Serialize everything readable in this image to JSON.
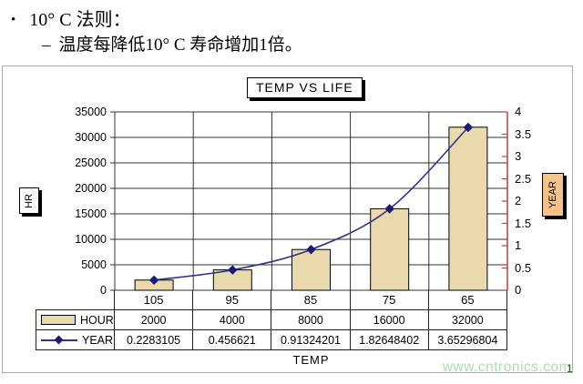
{
  "slide": {
    "bullet1": {
      "marker": "•",
      "text": "10° C 法则："
    },
    "bullet2": {
      "marker": "–",
      "text": "温度每降低10° C 寿命增加1倍。"
    },
    "page_number": "1"
  },
  "watermark": "www.cntronics.com",
  "chart_data": {
    "type": "bar+line combo",
    "title": "TEMP VS LIFE",
    "xlabel": "TEMP",
    "categories": [
      "105",
      "95",
      "85",
      "75",
      "65"
    ],
    "series": [
      {
        "name": "HOUR",
        "type": "bar",
        "axis": "left",
        "values": [
          2000,
          4000,
          8000,
          16000,
          32000
        ],
        "display": [
          "2000",
          "4000",
          "8000",
          "16000",
          "32000"
        ]
      },
      {
        "name": "YEAR",
        "type": "line",
        "axis": "right",
        "values": [
          0.2283105,
          0.456621,
          0.91324201,
          1.82648402,
          3.65296804
        ],
        "display": [
          "0.2283105",
          "0.456621",
          "0.91324201",
          "1.82648402",
          "3.65296804"
        ]
      }
    ],
    "left_axis": {
      "label": "HR",
      "min": 0,
      "max": 35000,
      "step": 5000,
      "ticks": [
        "35000",
        "30000",
        "25000",
        "20000",
        "15000",
        "10000",
        "5000",
        "0"
      ]
    },
    "right_axis": {
      "label": "YEAR",
      "min": 0,
      "max": 4,
      "step": 0.5,
      "ticks": [
        "4",
        "3.5",
        "3",
        "2.5",
        "2",
        "1.5",
        "1",
        "0.5",
        "0"
      ]
    },
    "grid": "on",
    "legend_position": "left table rows",
    "colors": {
      "bar_fill": "#e9d9ad",
      "bar_border": "#000000",
      "line": "#333388",
      "marker": "#1a1a78",
      "right_axis": "#c23b3b",
      "grid": "#333333",
      "year_box": "#f5c28c"
    }
  }
}
